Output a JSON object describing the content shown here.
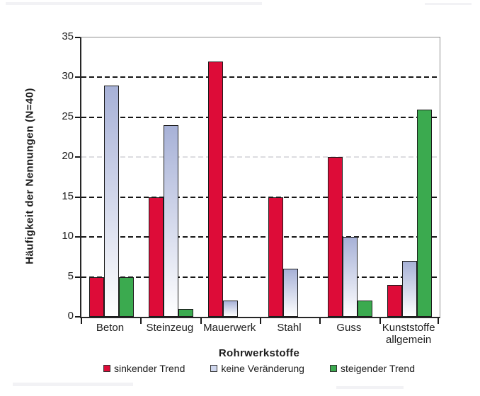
{
  "chart_data": {
    "type": "bar",
    "title": "",
    "xlabel": "Rohrwerkstoffe",
    "ylabel": "Häufigkeit der Nennungen (N=40)",
    "ylim": [
      0,
      35
    ],
    "yticks": [
      0,
      5,
      10,
      15,
      20,
      25,
      30,
      35
    ],
    "grid": "horizontal-dashed",
    "light_gridline_at": 20,
    "legend_position": "bottom",
    "categories": [
      "Beton",
      "Steinzeug",
      "Mauerwerk",
      "Stahl",
      "Guss",
      "Kunststoffe allgemein"
    ],
    "category_label_lines": [
      [
        "Beton"
      ],
      [
        "Steinzeug"
      ],
      [
        "Mauerwerk"
      ],
      [
        "Stahl"
      ],
      [
        "Guss"
      ],
      [
        "Kunststoffe",
        "allgemein"
      ]
    ],
    "series": [
      {
        "name": "sinkender Trend",
        "color": "#dd0c38",
        "swatch": "#dd0c38",
        "values": [
          5,
          15,
          32,
          15,
          20,
          4
        ]
      },
      {
        "name": "keine Veränderung",
        "gradient_top": "#a7b1d7",
        "gradient_bottom": "#ffffff",
        "swatch": "#cfd7ee",
        "values": [
          29,
          24,
          2,
          6,
          10,
          7
        ]
      },
      {
        "name": "steigender Trend",
        "color": "#3baa4f",
        "swatch": "#3baa4f",
        "values": [
          5,
          1,
          0,
          0,
          2,
          26
        ]
      }
    ]
  },
  "colors": {
    "axis": "#262626",
    "box_border": "#8f8f8f",
    "grid": "#161616",
    "grid_light": "#dcdce0",
    "text": "#1c1c1c",
    "bar_outline": "#1c1c1c"
  }
}
